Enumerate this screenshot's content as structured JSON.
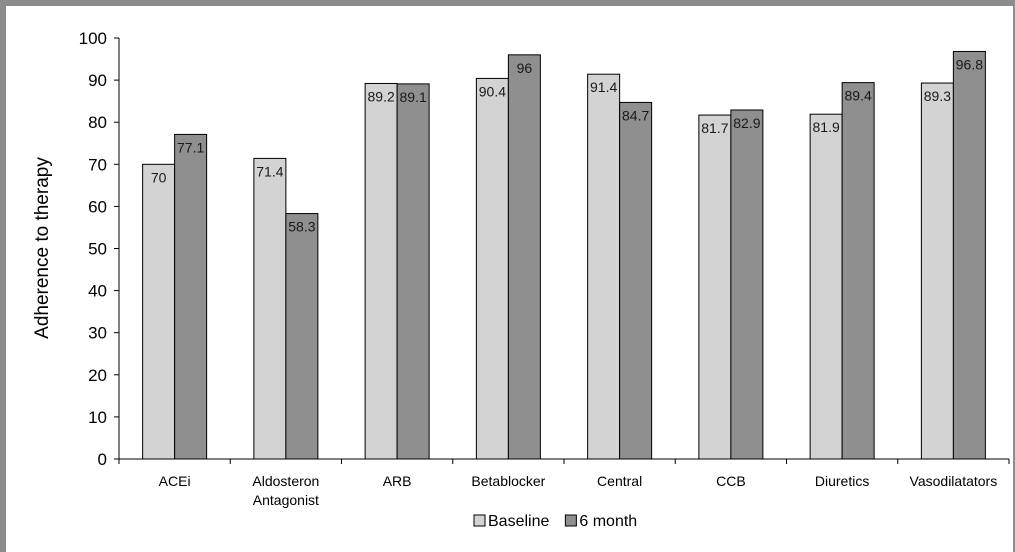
{
  "chart_data": {
    "type": "bar",
    "ylabel": "Adherence to therapy",
    "xlabel": "",
    "ylim": [
      0,
      100
    ],
    "yticks": [
      0,
      10,
      20,
      30,
      40,
      50,
      60,
      70,
      80,
      90,
      100
    ],
    "grid": false,
    "legend": "bottom",
    "categories": [
      [
        "ACEi"
      ],
      [
        "Aldosteron",
        "Antagonist"
      ],
      [
        "ARB"
      ],
      [
        "Betablocker"
      ],
      [
        "Central"
      ],
      [
        "CCB"
      ],
      [
        "Diuretics"
      ],
      [
        "Vasodilatators"
      ]
    ],
    "series": [
      {
        "name": "Baseline",
        "color": "#d3d3d3",
        "values": [
          70,
          71.4,
          89.2,
          90.4,
          91.4,
          81.7,
          81.9,
          89.3
        ],
        "labels": [
          "70",
          "71.4",
          "89.2",
          "90.4",
          "91.4",
          "81.7",
          "81.9",
          "89.3"
        ]
      },
      {
        "name": "6 month",
        "color": "#8f8f8f",
        "values": [
          77.1,
          58.3,
          89.1,
          96,
          84.7,
          82.9,
          89.4,
          96.8
        ],
        "labels": [
          "77.1",
          "58.3",
          "89.1",
          "96",
          "84.7",
          "82.9",
          "89.4",
          "96.8"
        ]
      }
    ]
  }
}
